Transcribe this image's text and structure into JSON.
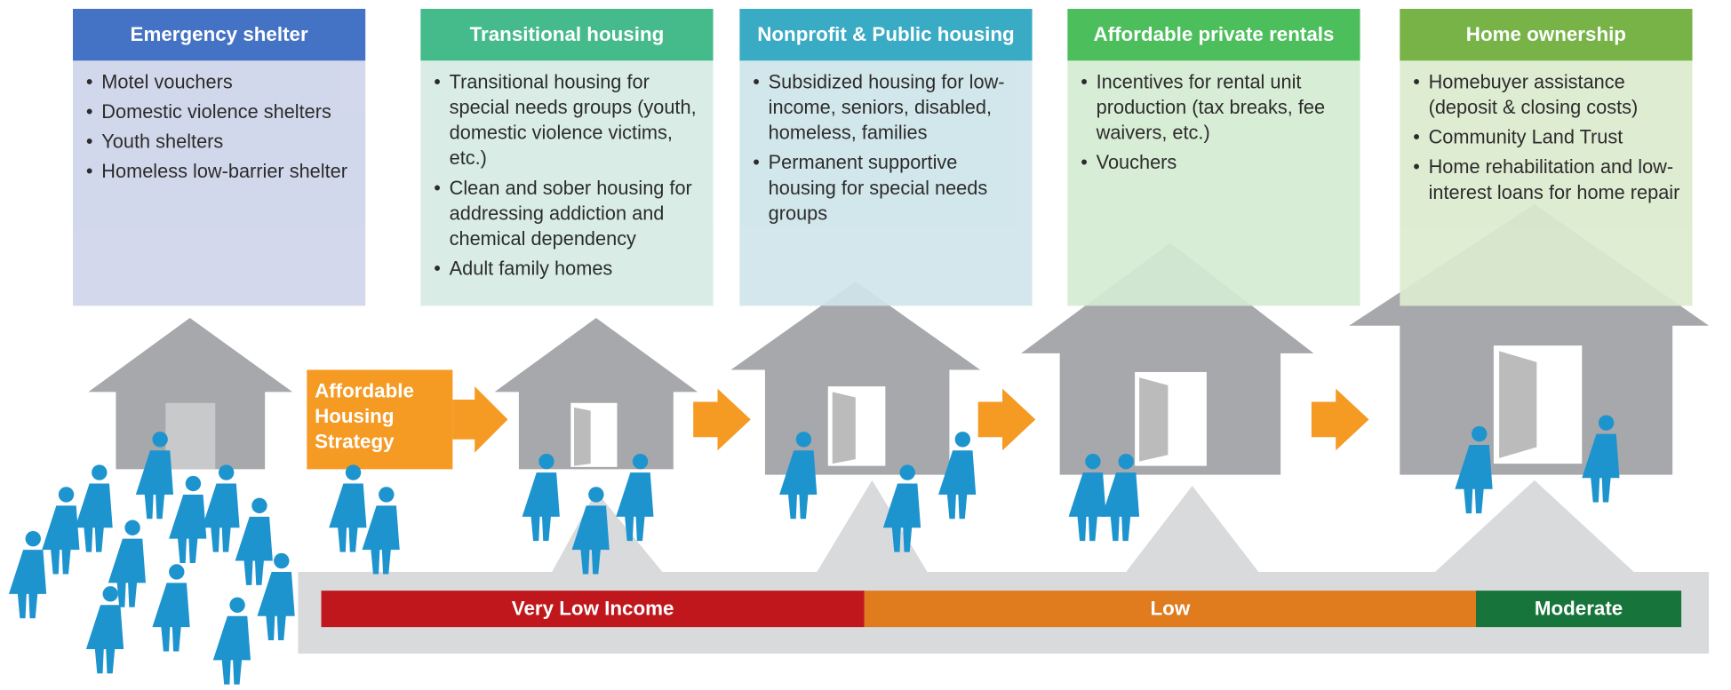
{
  "columns": [
    {
      "title": "Emergency shelter",
      "items": [
        "Motel vouchers",
        "Domestic violence shelters",
        "Youth shelters",
        "Homeless low-barrier shelter"
      ]
    },
    {
      "title": "Transitional housing",
      "items": [
        "Transitional housing for special needs groups (youth, domestic violence victims, etc.)",
        "Clean and sober housing for addressing addiction and chemical dependency",
        "Adult family homes"
      ]
    },
    {
      "title": "Nonprofit & Public housing",
      "items": [
        "Subsidized housing for low-income, seniors, disabled, homeless, families",
        "Permanent supportive housing for special needs groups"
      ]
    },
    {
      "title": "Affordable private rentals",
      "items": [
        "Incentives for rental unit production (tax breaks, fee waivers, etc.)",
        "Vouchers"
      ]
    },
    {
      "title": "Home ownership",
      "items": [
        "Homebuyer assistance (deposit & closing costs)",
        "Community Land Trust",
        "Home rehabilitation and low-interest loans for home repair"
      ]
    }
  ],
  "strategy": "Affordable Housing Strategy",
  "income_bands": [
    "Very Low Income",
    "Low",
    "Moderate"
  ]
}
